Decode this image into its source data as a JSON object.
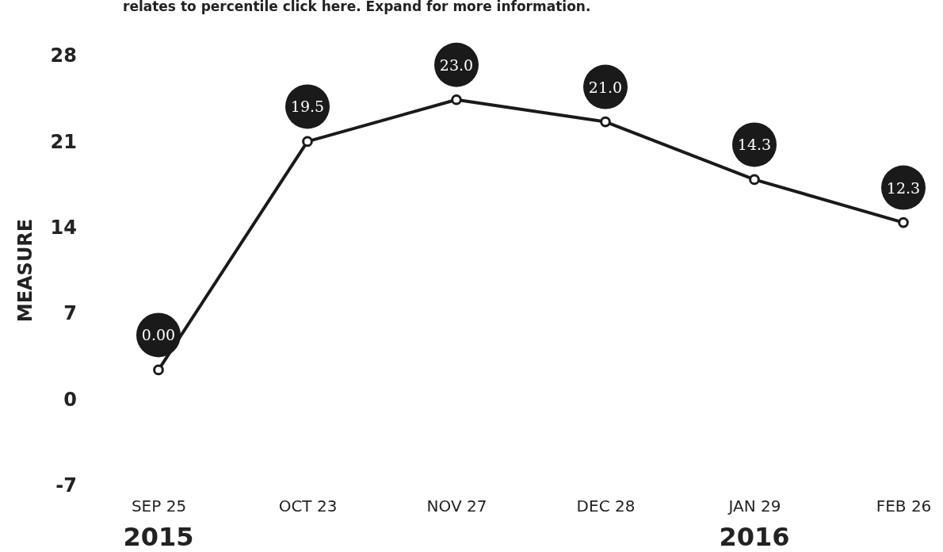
{
  "chart_data": {
    "type": "line",
    "subtitle": "relates to percentile click here. Expand for more information.",
    "ylabel": "MEASURE",
    "categories": [
      "SEP 25",
      "OCT 23",
      "NOV 27",
      "DEC 28",
      "JAN 29",
      "FEB 26"
    ],
    "series": [
      {
        "color": "#1a1a1a",
        "values": [
          2.4,
          21.0,
          24.4,
          22.6,
          17.9,
          14.4
        ]
      }
    ],
    "value_labels": [
      "0.00",
      "19.5",
      "23.0",
      "21.0",
      "14.3",
      "12.3"
    ],
    "ylim": [
      -7,
      28
    ],
    "yticks": [
      -7,
      0,
      7,
      14,
      21,
      28
    ],
    "grid": false,
    "marker": "circle",
    "line_style": "solid",
    "annotations": [
      "2015",
      "2016"
    ]
  }
}
